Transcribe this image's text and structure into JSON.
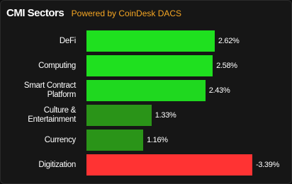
{
  "chart_data": {
    "type": "bar",
    "orientation": "horizontal",
    "title": "CMI Sectors",
    "subtitle": "Powered by CoinDesk DACS",
    "categories": [
      "DeFi",
      "Computing",
      "Smart Contract Platform",
      "Culture & Entertainment",
      "Currency",
      "Digitization"
    ],
    "values": [
      2.62,
      2.58,
      2.43,
      1.33,
      1.16,
      -3.39
    ],
    "value_labels": [
      "2.62%",
      "2.58%",
      "2.43%",
      "1.33%",
      "1.16%",
      "-3.39%"
    ],
    "colors": [
      "#1fe01f",
      "#1fe01f",
      "#1fd81f",
      "#2a9418",
      "#2a9418",
      "#ff3333"
    ]
  }
}
